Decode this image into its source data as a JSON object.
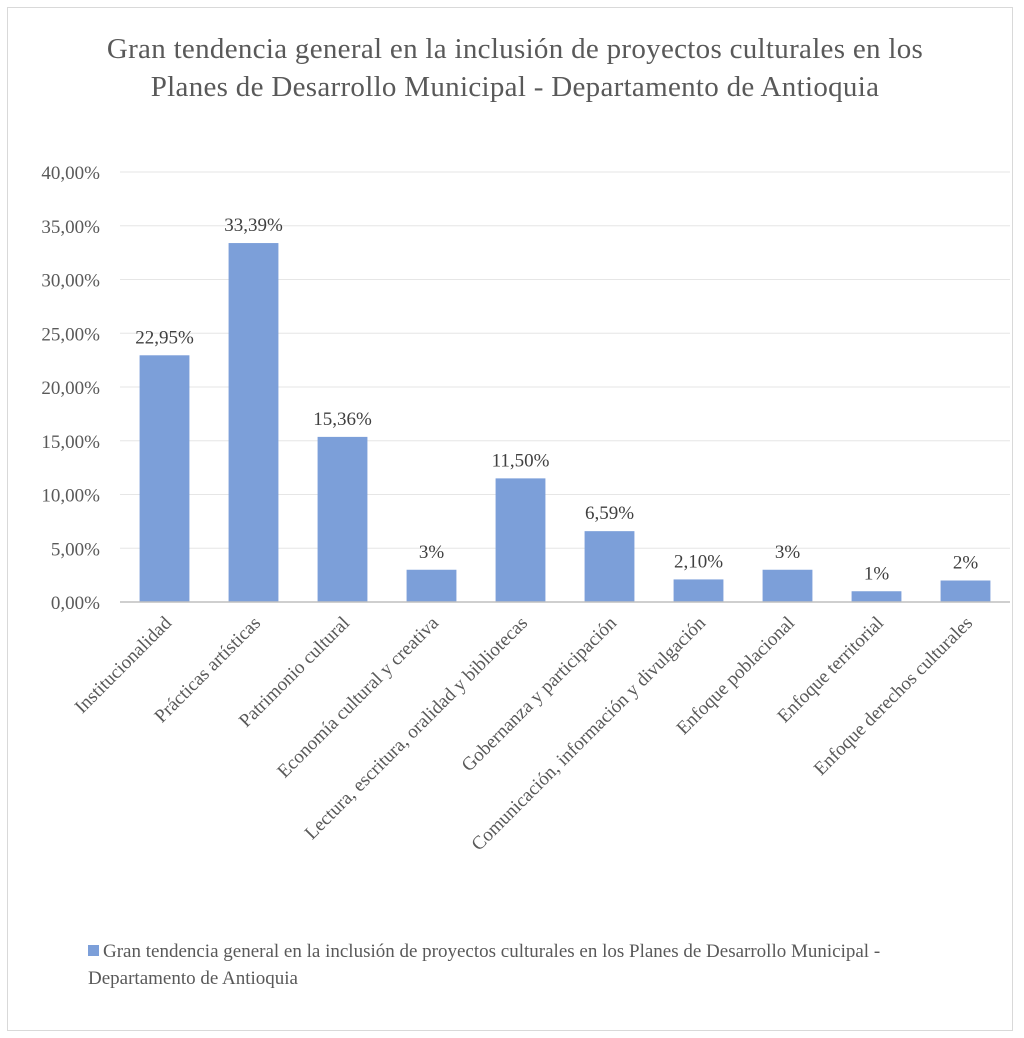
{
  "chart_data": {
    "type": "bar",
    "title": "Gran tendencia general en la inclusión de proyectos culturales en los Planes de Desarrollo Municipal - Departamento de Antioquia",
    "categories": [
      "Institucionalidad",
      "Prácticas artísticas",
      "Patrimonio cultural",
      "Economía cultural y creativa",
      "Lectura, escritura, oralidad y bibliotecas",
      "Gobernanza y participación",
      "Comunicación, información y divulgación",
      "Enfoque poblacional",
      "Enfoque territorial",
      "Enfoque derechos culturales"
    ],
    "series": [
      {
        "name": "Gran tendencia general en la inclusión de proyectos culturales en los Planes de Desarrollo Municipal - Departamento de Antioquia",
        "values": [
          22.95,
          33.39,
          15.36,
          3,
          11.5,
          6.59,
          2.1,
          3,
          1,
          2
        ],
        "data_labels": [
          "22,95%",
          "33,39%",
          "15,36%",
          "3%",
          "11,50%",
          "6,59%",
          "2,10%",
          "3%",
          "1%",
          "2%"
        ],
        "color": "#7c9fd9"
      }
    ],
    "ylim": [
      0,
      40
    ],
    "yticks": [
      0,
      5,
      10,
      15,
      20,
      25,
      30,
      35,
      40
    ],
    "ytick_labels": [
      "0,00%",
      "5,00%",
      "10,00%",
      "15,00%",
      "20,00%",
      "25,00%",
      "30,00%",
      "35,00%",
      "40,00%"
    ],
    "grid": true,
    "legend_position": "bottom"
  },
  "colors": {
    "bar": "#7c9fd9",
    "grid": "#e6e6e6",
    "axis": "#bfbfbf",
    "text": "#595959"
  }
}
